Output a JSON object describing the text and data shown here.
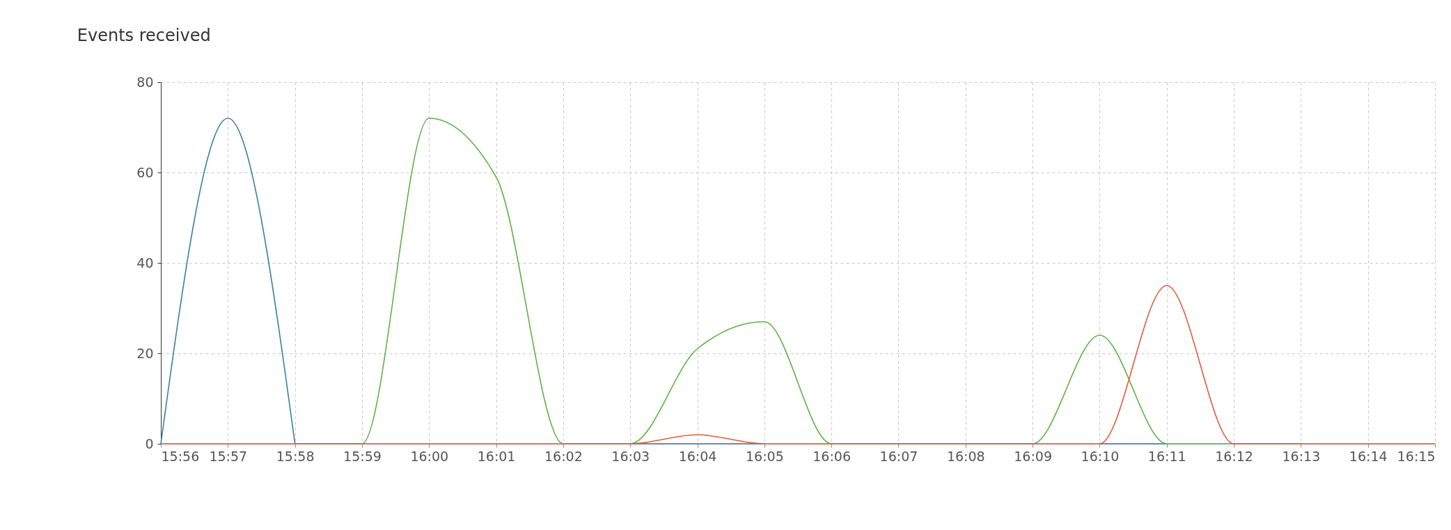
{
  "chart_data": {
    "type": "line",
    "title": "Events received",
    "categories": [
      "15:56",
      "15:57",
      "15:58",
      "15:59",
      "16:00",
      "16:01",
      "16:02",
      "16:03",
      "16:04",
      "16:05",
      "16:06",
      "16:07",
      "16:08",
      "16:09",
      "16:10",
      "16:11",
      "16:12",
      "16:13",
      "16:14",
      "16:15"
    ],
    "series": [
      {
        "color": "#3a80a3",
        "values": [
          0,
          72,
          0,
          null,
          null,
          null,
          null,
          0,
          0,
          0,
          null,
          null,
          null,
          null,
          0,
          0,
          null,
          null,
          null,
          null
        ]
      },
      {
        "color": "#5cb341",
        "values": [
          null,
          null,
          0,
          0,
          72,
          59,
          0,
          0,
          21,
          27,
          0,
          0,
          0,
          0,
          24,
          0,
          0,
          0,
          null,
          null
        ]
      },
      {
        "color": "#e8593a",
        "values": [
          0,
          0,
          0,
          0,
          0,
          0,
          0,
          0,
          2,
          0,
          0,
          0,
          0,
          0,
          0,
          35,
          0,
          0,
          0,
          0
        ]
      }
    ],
    "ylim": [
      0,
      80
    ],
    "yticks": [
      0,
      20,
      40,
      60,
      80
    ],
    "grid": true,
    "legend": false,
    "marker": "none",
    "line_style": "solid"
  }
}
